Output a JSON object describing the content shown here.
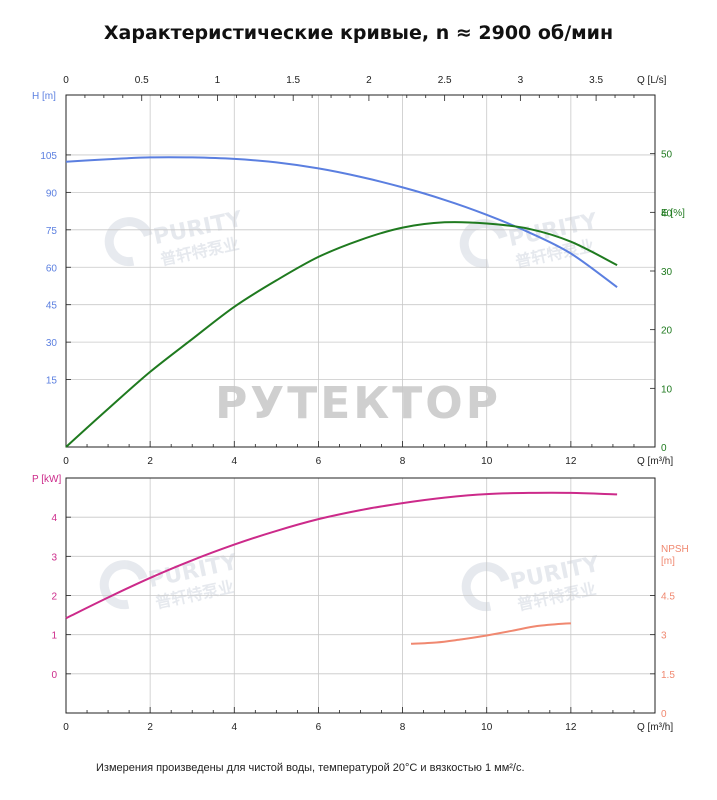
{
  "title": "Характеристические кривые, n ≈ 2900 об/мин",
  "footnote": "Измерения произведены для чистой воды, температурой 20°С и вязкостью 1 мм²/с.",
  "watermarks": {
    "main": "РУТЕКТОР",
    "logo_latin": "PURITY",
    "logo_cjk": "普轩特泵业"
  },
  "colors": {
    "head": "#5b7fe0",
    "efficiency": "#1f7a1f",
    "power": "#cc2a8a",
    "npsh": "#f08870",
    "axis_dark": "#222222",
    "grid": "#c8c8c8"
  },
  "chart_data": [
    {
      "type": "line",
      "panel": "top",
      "x_label": "Q [m³/h]",
      "x2_label": "Q [L/s]",
      "y_left_label": "H [m]",
      "y_right_label": "E [%]",
      "x_range": [
        0,
        14
      ],
      "x_ticks": [
        0,
        2,
        4,
        6,
        8,
        10,
        12
      ],
      "x2_ticks": [
        "0",
        "0.5",
        "1",
        "1.5",
        "2",
        "2.5",
        "3",
        "3.5"
      ],
      "x2_values": [
        0,
        0.5,
        1,
        1.5,
        2,
        2.5,
        3,
        3.5
      ],
      "y_left_range": [
        -12,
        129
      ],
      "y_left_ticks": [
        15,
        30,
        45,
        60,
        75,
        90,
        105
      ],
      "y_right_range": [
        0,
        60
      ],
      "y_right_ticks": [
        0,
        10,
        20,
        30,
        40,
        50
      ],
      "grid": true,
      "series": [
        {
          "axis": "left",
          "x": [
            0,
            1,
            2,
            3,
            4,
            5,
            6,
            7,
            8,
            9,
            10,
            11,
            12,
            13.1
          ],
          "y": [
            102.3,
            103.3,
            104,
            104,
            103.4,
            102,
            99.6,
            96.2,
            92,
            87,
            81,
            74,
            65.5,
            52
          ]
        },
        {
          "axis": "right",
          "x": [
            0,
            1,
            2,
            3,
            4,
            5,
            6,
            7,
            8,
            9,
            10,
            11,
            12,
            13.1
          ],
          "y": [
            0,
            6.5,
            12.8,
            18.4,
            23.9,
            28.4,
            32.4,
            35.3,
            37.4,
            38.3,
            38.1,
            37.2,
            35,
            31
          ]
        }
      ]
    },
    {
      "type": "line",
      "panel": "bottom",
      "x_label": "Q [m³/h]",
      "y_left_label": "P [kW]",
      "y_right_label": "NPSH\n[m]",
      "x_range": [
        0,
        14
      ],
      "x_ticks": [
        0,
        2,
        4,
        6,
        8,
        10,
        12
      ],
      "y_left_range": [
        -1,
        5
      ],
      "y_left_ticks": [
        0,
        1,
        2,
        3,
        4
      ],
      "y_right_range": [
        0,
        9
      ],
      "y_right_ticks": [
        "0",
        "1.5",
        "3",
        "4.5"
      ],
      "y_right_values": [
        0,
        1.5,
        3,
        4.5
      ],
      "grid": true,
      "series": [
        {
          "axis": "left",
          "x": [
            0,
            1,
            2,
            3,
            4,
            5,
            6,
            7,
            8,
            9,
            10,
            11,
            12,
            13.1
          ],
          "y": [
            1.42,
            1.95,
            2.45,
            2.9,
            3.3,
            3.65,
            3.95,
            4.18,
            4.36,
            4.5,
            4.59,
            4.62,
            4.62,
            4.58
          ]
        },
        {
          "axis": "right",
          "x": [
            8.2,
            8.8,
            9.4,
            10,
            10.6,
            11.2,
            11.8,
            12
          ],
          "y": [
            2.65,
            2.7,
            2.82,
            2.97,
            3.15,
            3.33,
            3.42,
            3.43
          ]
        }
      ]
    }
  ]
}
